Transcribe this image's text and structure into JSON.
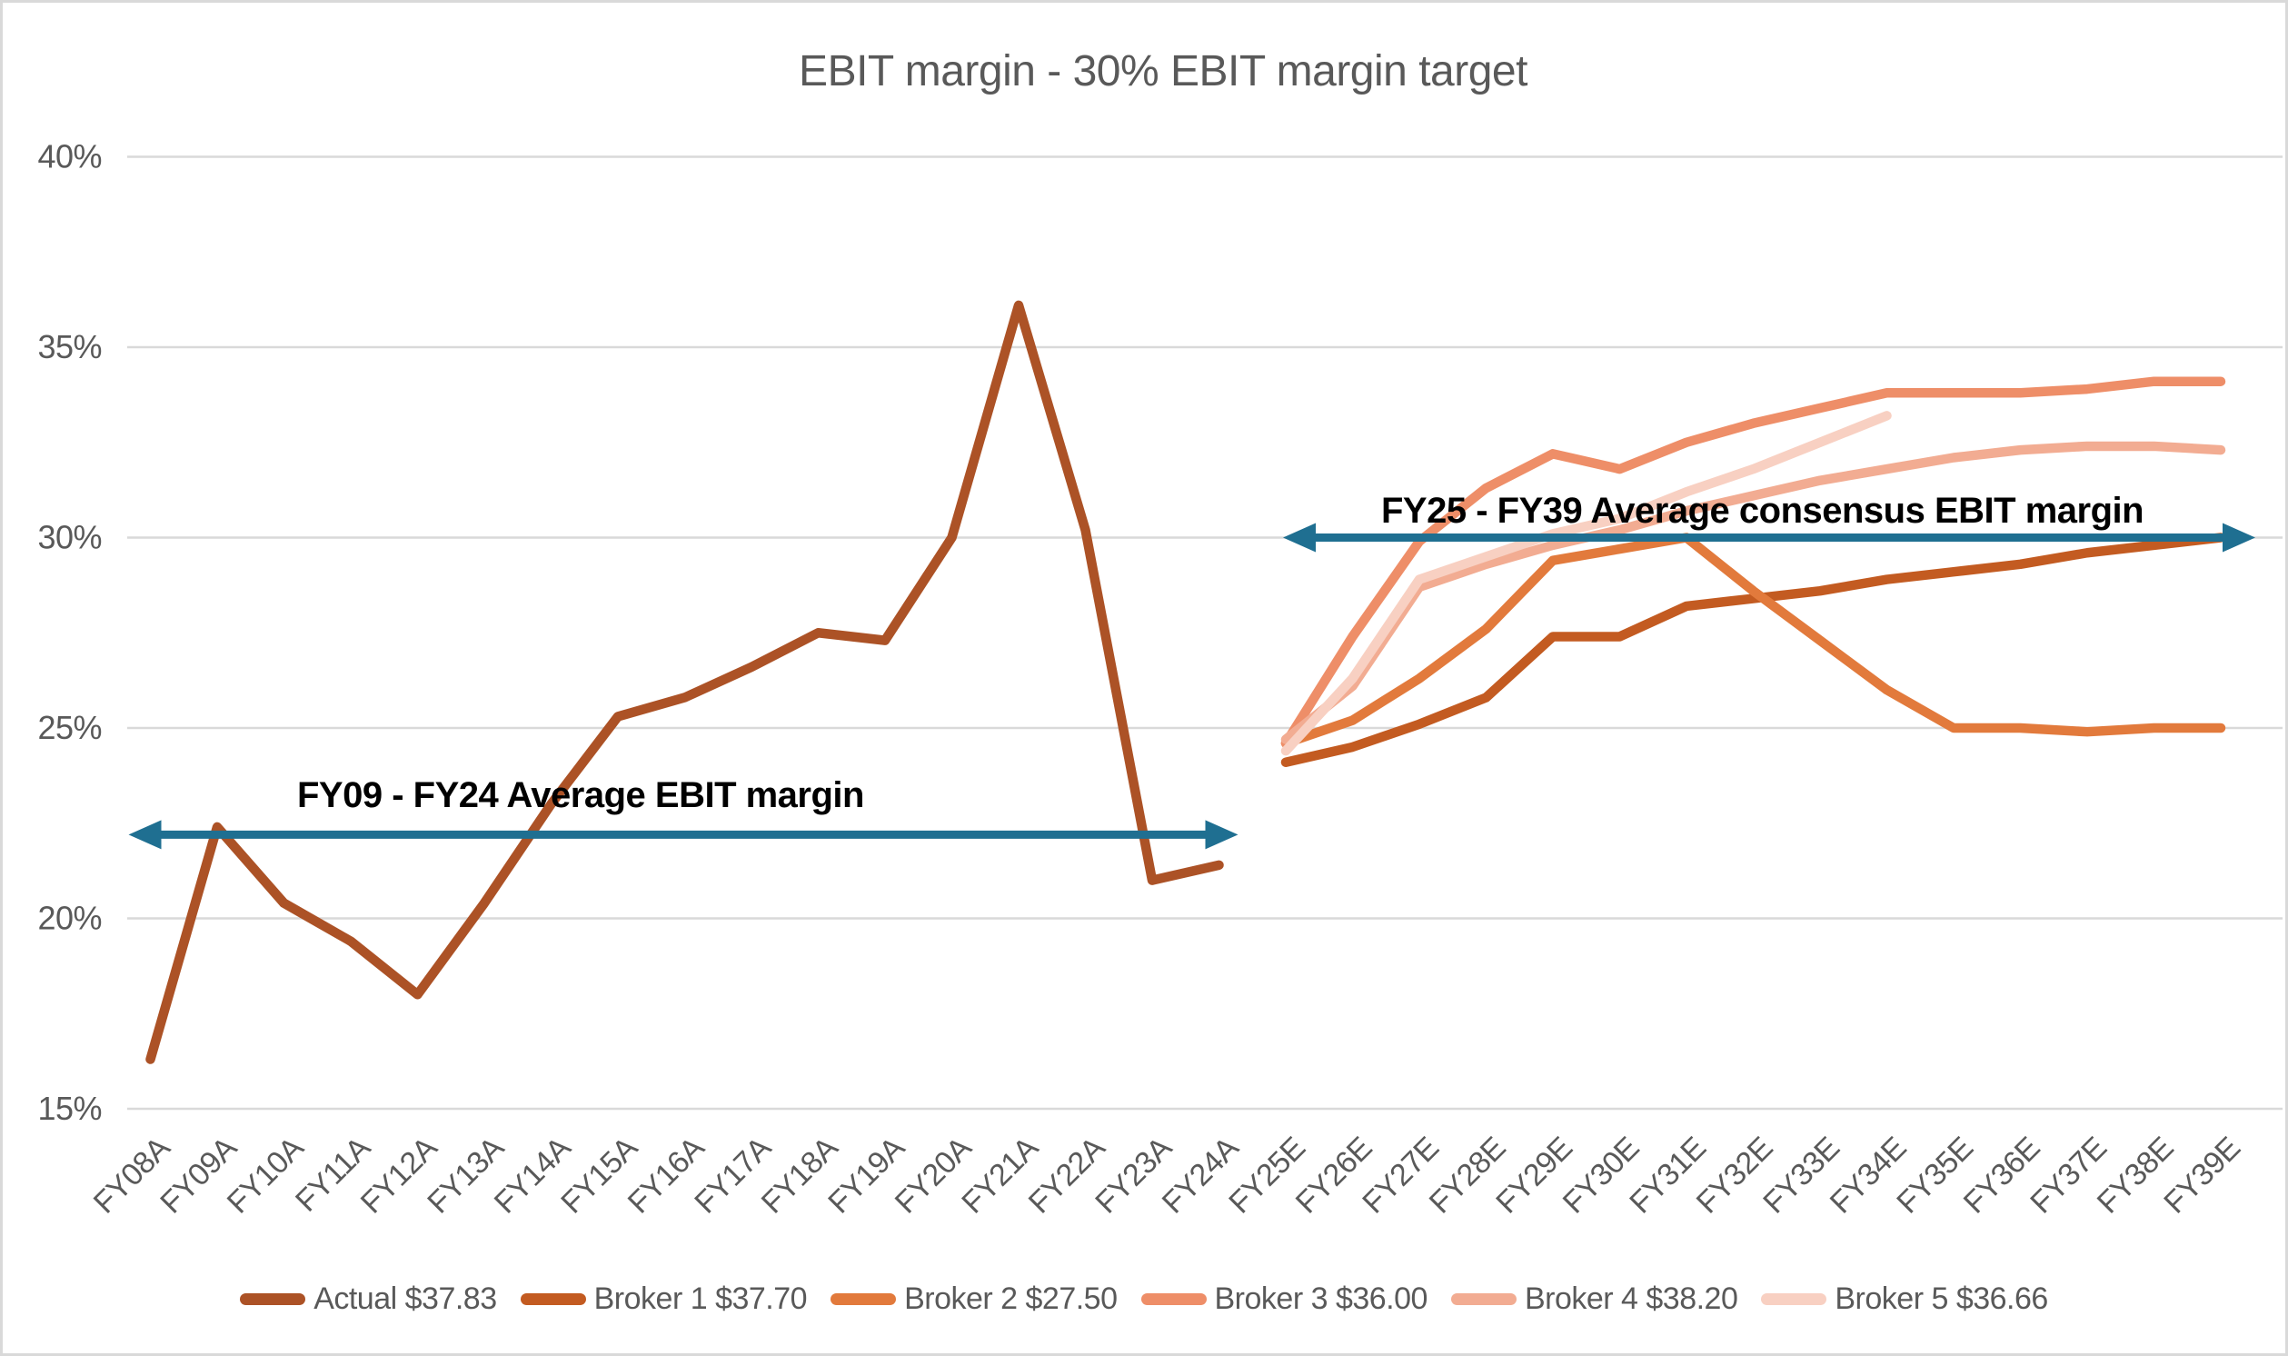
{
  "chart_data": {
    "type": "line",
    "title": "EBIT margin - 30% EBIT margin target",
    "xlabel": "",
    "ylabel": "",
    "ylim": [
      15,
      40
    ],
    "grid": "horizontal",
    "legend_position": "bottom",
    "y_axis": {
      "tick_labels": [
        "40%",
        "35%",
        "30%",
        "25%",
        "20%",
        "15%"
      ],
      "tick_values": [
        40,
        35,
        30,
        25,
        20,
        15
      ]
    },
    "categories": [
      "FY08A",
      "FY09A",
      "FY10A",
      "FY11A",
      "FY12A",
      "FY13A",
      "FY14A",
      "FY15A",
      "FY16A",
      "FY17A",
      "FY18A",
      "FY19A",
      "FY20A",
      "FY21A",
      "FY22A",
      "FY23A",
      "FY24A",
      "FY25E",
      "FY26E",
      "FY27E",
      "FY28E",
      "FY29E",
      "FY30E",
      "FY31E",
      "FY32E",
      "FY33E",
      "FY34E",
      "FY35E",
      "FY36E",
      "FY37E",
      "FY38E",
      "FY39E"
    ],
    "series": [
      {
        "name": "Actual",
        "legend_label": "Actual $37.83",
        "color": "#AC5226",
        "start_category": "FY08A",
        "values": [
          16.3,
          22.4,
          20.4,
          19.4,
          18.0,
          20.4,
          23.0,
          25.3,
          25.8,
          26.6,
          27.5,
          27.3,
          30.0,
          36.1,
          30.2,
          21.0,
          21.4
        ]
      },
      {
        "name": "Broker 1",
        "legend_label": "Broker 1 $37.70",
        "color": "#C35B21",
        "start_category": "FY25E",
        "values": [
          24.1,
          24.5,
          25.1,
          25.8,
          27.4,
          27.4,
          28.2,
          28.4,
          28.6,
          28.9,
          29.1,
          29.3,
          29.6,
          29.8,
          30.0
        ]
      },
      {
        "name": "Broker 2",
        "legend_label": "Broker 2 $27.50",
        "color": "#E27A3C",
        "start_category": "FY25E",
        "values": [
          24.6,
          25.2,
          26.3,
          27.6,
          29.4,
          29.7,
          30.0,
          28.6,
          27.3,
          26.0,
          25.0,
          25.0,
          24.9,
          25.0,
          25.0
        ]
      },
      {
        "name": "Broker 3",
        "legend_label": "Broker 3 $36.00",
        "color": "#EE8E68",
        "start_category": "FY25E",
        "values": [
          24.6,
          27.4,
          29.9,
          31.3,
          32.2,
          31.8,
          32.5,
          33.0,
          33.4,
          33.8,
          33.8,
          33.8,
          33.9,
          34.1,
          34.1
        ]
      },
      {
        "name": "Broker 4",
        "legend_label": "Broker 4 $38.20",
        "color": "#F2AC92",
        "start_category": "FY25E",
        "values": [
          24.7,
          26.1,
          28.7,
          29.3,
          29.8,
          30.2,
          30.7,
          31.1,
          31.5,
          31.8,
          32.1,
          32.3,
          32.4,
          32.4,
          32.3
        ]
      },
      {
        "name": "Broker 5",
        "legend_label": "Broker 5 $36.66",
        "color": "#F8D0C2",
        "start_category": "FY25E",
        "values": [
          24.4,
          26.3,
          28.9,
          29.5,
          30.1,
          30.5,
          31.2,
          31.8,
          32.5,
          33.2
        ]
      }
    ],
    "annotations": [
      {
        "label": "FY09 - FY24 Average EBIT margin",
        "arrow_value": 22.2,
        "from_category": "FY08A",
        "to_category": "FY24A",
        "arrow_style": "double-headed"
      },
      {
        "label": "FY25 - FY39 Average consensus EBIT margin",
        "arrow_value": 30.0,
        "from_category": "FY25E",
        "to_category": "FY39E",
        "arrow_style": "double-headed"
      }
    ],
    "colors": {
      "arrow": "#1F6F91",
      "title_text": "#595959",
      "axis_text": "#595959",
      "gridline": "#D9D9D9",
      "border": "#D9D9D9",
      "annotation_text": "#000000"
    }
  }
}
